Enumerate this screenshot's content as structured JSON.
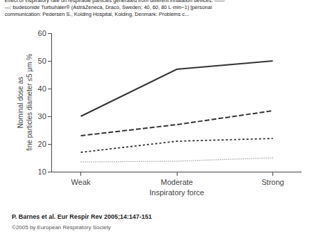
{
  "chart_data": {
    "type": "line",
    "title": "Effect of inspiratory rate on respirable particles generated from different inhalation devices. ——\n—: budesonide Turbuhaler® (AstraZeneca, Draco, Sweden; 40, 60, 80 L·min−1) [personal\ncommunication: Pedersen S., Kolding Hospital, Kolding, Denmark: Problems c...",
    "xlabel": "Inspiratory force",
    "ylabel": "Nominal dose as\nfine particles diameter ≤5 μm %",
    "categories": [
      "Weak",
      "Moderate",
      "Strong"
    ],
    "series": [
      {
        "values": [
          30,
          47,
          50
        ],
        "color": "#333333",
        "line_style": "solid"
      },
      {
        "values": [
          23,
          27,
          32
        ],
        "color": "#333333",
        "line_style": "dashed"
      },
      {
        "values": [
          17,
          21,
          22
        ],
        "color": "#333333",
        "line_style": "dotted"
      },
      {
        "values": [
          13.5,
          13.8,
          15
        ],
        "color": "#777777",
        "line_style": "fine_dotted"
      }
    ],
    "ylim": [
      10,
      60
    ],
    "yticks": [
      10,
      20,
      30,
      40,
      50,
      60
    ],
    "grid": false,
    "annotations": [
      "P. Barnes et al. Eur Respir Rev 2005;14:147-151",
      "©2005 by European Respiratory Society"
    ]
  }
}
